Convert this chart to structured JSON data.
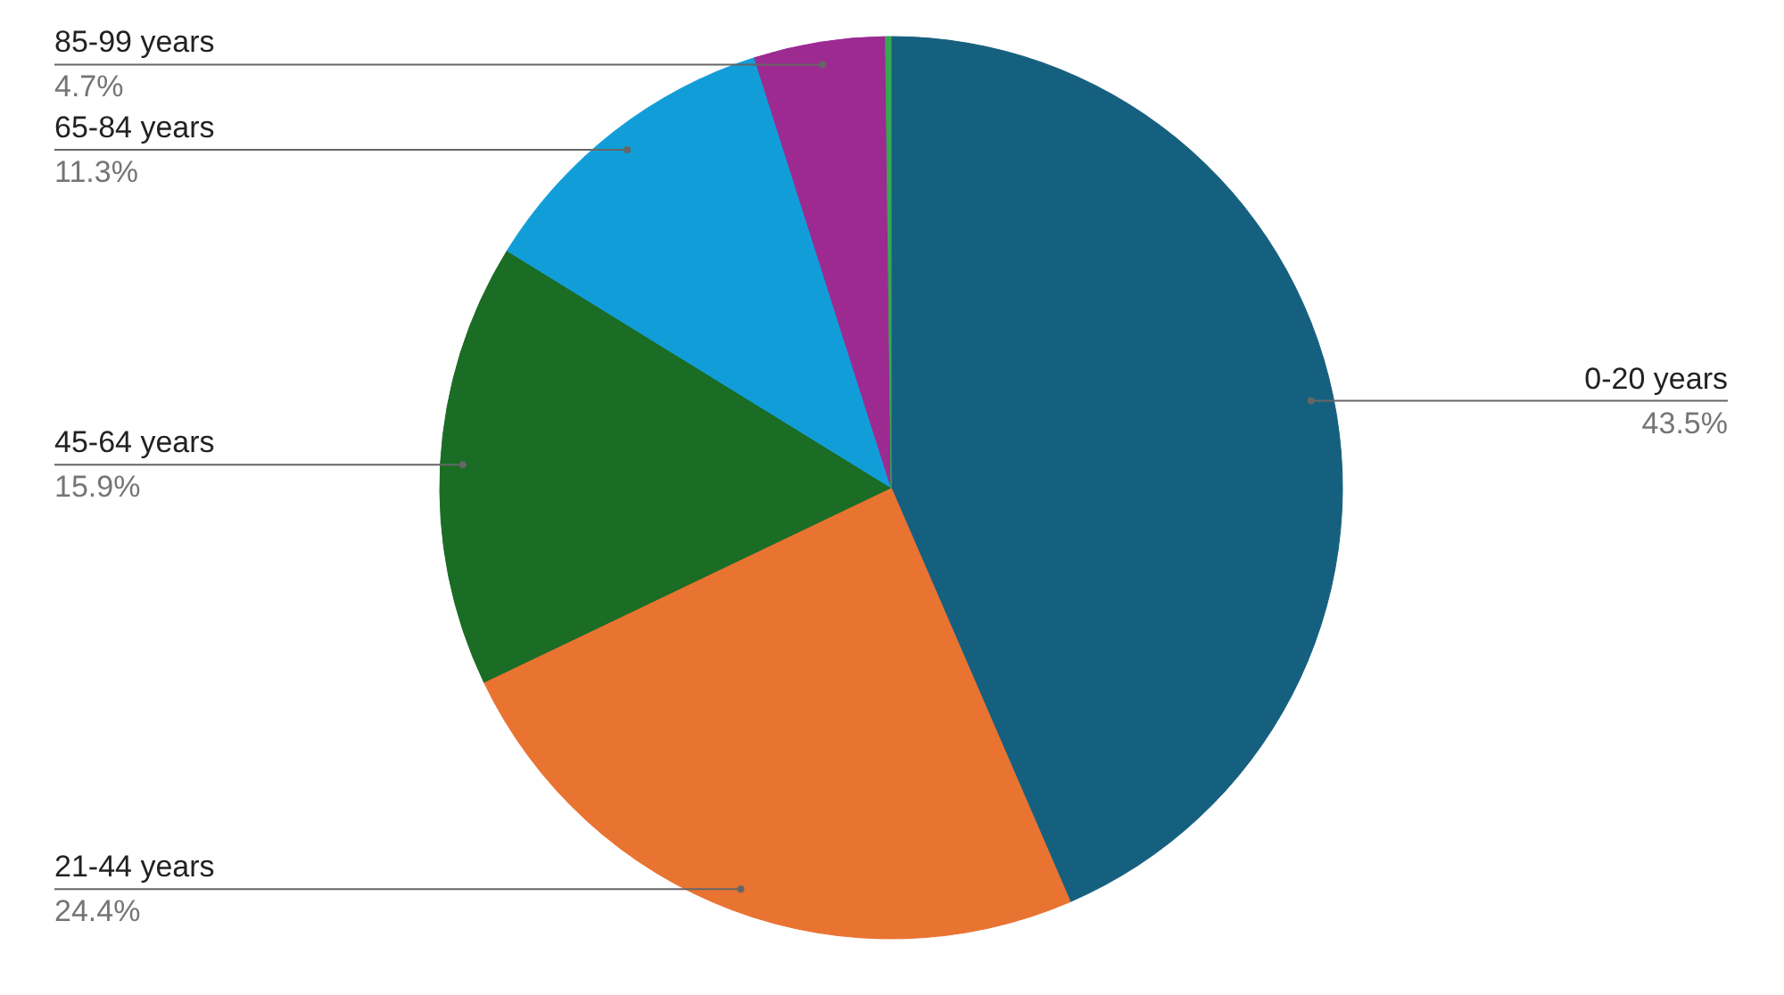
{
  "chart_data": {
    "type": "pie",
    "categories": [
      "0-20 years",
      "21-44 years",
      "45-64 years",
      "65-84 years",
      "85-99 years",
      null
    ],
    "values": [
      43.5,
      24.4,
      15.9,
      11.3,
      4.7,
      0.2
    ],
    "colors": [
      "#16607f",
      "#e97331",
      "#1b6c24",
      "#119ed8",
      "#9c2a91",
      "#34a853"
    ],
    "value_labels": [
      "43.5%",
      "24.4%",
      "15.9%",
      "11.3%",
      "4.7%",
      null
    ],
    "legend": false
  }
}
